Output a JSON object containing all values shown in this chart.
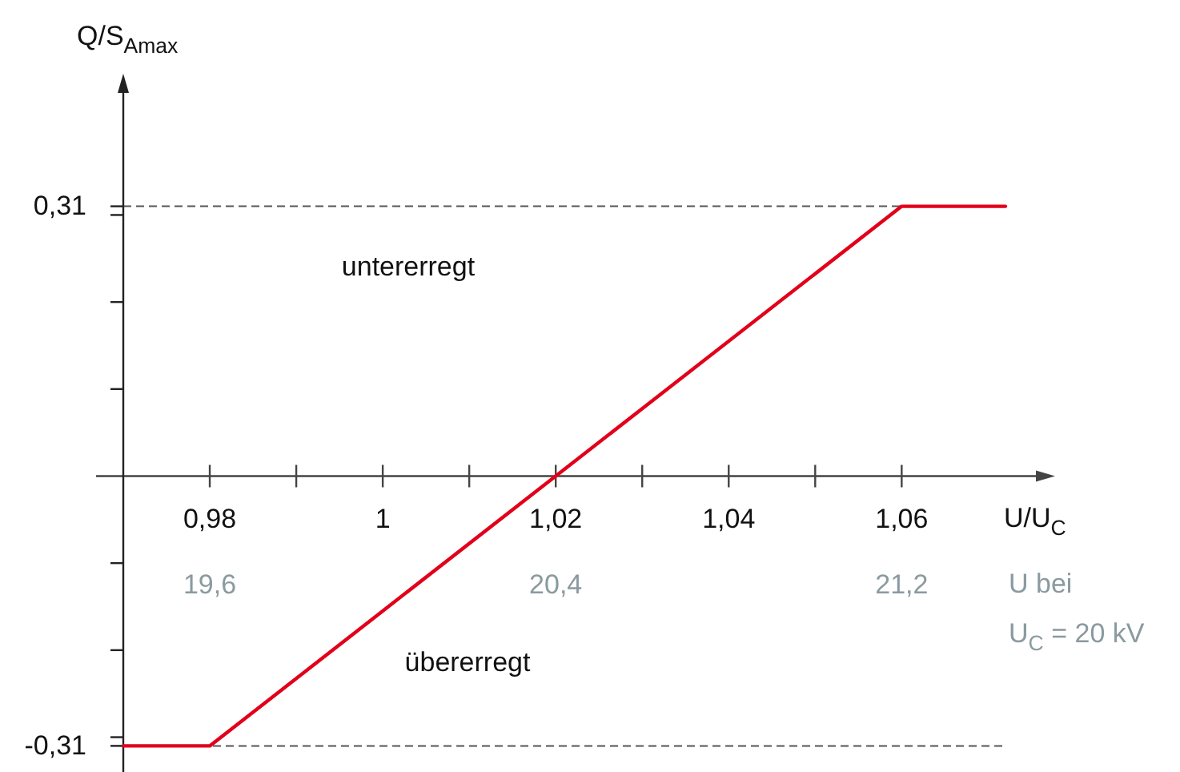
{
  "chart_data": {
    "type": "line",
    "xlabel": "U/U$_{C}$",
    "ylabel": "Q/S$_{Amax}$",
    "x2label": "U bei\nU$_{C}$ = 20 kV",
    "x": [
      0.97,
      0.98,
      1.06,
      1.072
    ],
    "series": [
      {
        "color": "#e2001a",
        "values": [
          -0.31,
          -0.31,
          0.31,
          0.31
        ]
      }
    ],
    "xlim": [
      0.97,
      1.077
    ],
    "ylim": [
      -0.34,
      0.455
    ],
    "xticks": [
      {
        "value": 0.98,
        "label": "0,98"
      },
      {
        "value": 0.99,
        "label": null
      },
      1,
      {
        "value": 1.01,
        "label": null
      },
      {
        "value": 1.02,
        "label": "1,02"
      },
      {
        "value": 1.03,
        "label": null
      },
      {
        "value": 1.04,
        "label": "1,04"
      },
      {
        "value": 1.05,
        "label": null
      },
      {
        "value": 1.06,
        "label": "1,06"
      }
    ],
    "yticks": [
      {
        "value": -0.31,
        "label": "-0,31"
      },
      {
        "value": -0.3,
        "label": null
      },
      {
        "value": -0.2,
        "label": null
      },
      {
        "value": -0.1,
        "label": null
      },
      {
        "value": 0.1,
        "label": null
      },
      {
        "value": 0.2,
        "label": null
      },
      {
        "value": 0.3,
        "label": null
      },
      {
        "value": 0.31,
        "label": "0,31"
      }
    ],
    "x2lim": [
      19.4,
      21.54
    ],
    "x2ticks": [
      {
        "value": 19.6,
        "label": "19,6"
      },
      {
        "value": 20.4,
        "label": "20,4"
      },
      {
        "value": 21.2,
        "label": "21,2"
      }
    ],
    "ref_lines": [
      {
        "axis": "y",
        "value": 0.31,
        "color": "#555555",
        "line_style": "dashed"
      },
      {
        "axis": "y",
        "value": -0.31,
        "color": "#555555",
        "line_style": "dashed"
      }
    ],
    "annotations": [
      "untererregt",
      "übererregt"
    ]
  }
}
